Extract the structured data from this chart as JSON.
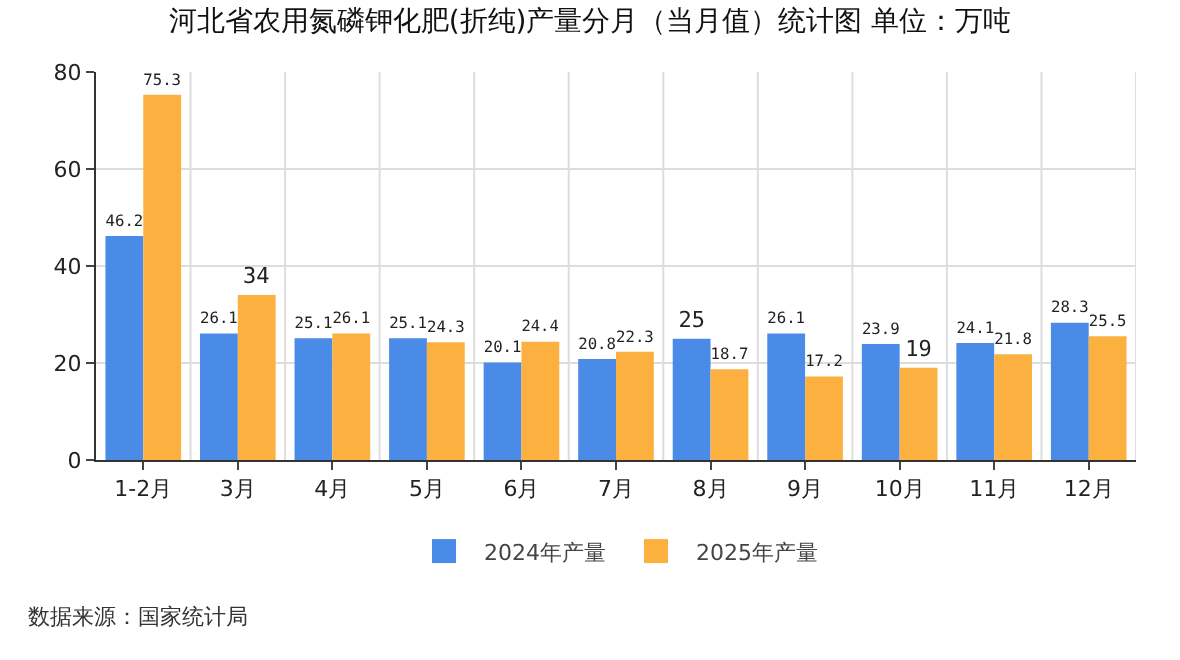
{
  "chart_data": {
    "type": "bar",
    "title": "河北省农用氮磷钾化肥(折纯)产量分月（当月值）统计图 单位：万吨",
    "categories": [
      "1-2月",
      "3月",
      "4月",
      "5月",
      "6月",
      "7月",
      "8月",
      "9月",
      "10月",
      "11月",
      "12月"
    ],
    "series": [
      {
        "name": "2024年产量",
        "color": "#4a8be8",
        "values": [
          46.2,
          26.1,
          25.1,
          25.1,
          20.1,
          20.8,
          25,
          26.1,
          23.9,
          24.1,
          28.3
        ]
      },
      {
        "name": "2025年产量",
        "color": "#fbb040",
        "values": [
          75.3,
          34,
          26.1,
          24.3,
          24.4,
          22.3,
          18.7,
          17.2,
          19,
          21.8,
          25.5
        ]
      }
    ],
    "ylim": [
      0,
      80
    ],
    "yticks": [
      0,
      20,
      40,
      60,
      80
    ],
    "grid": true,
    "legend": "bottom",
    "data_labels": true,
    "annotations": [
      "数据来源：国家统计局"
    ]
  }
}
